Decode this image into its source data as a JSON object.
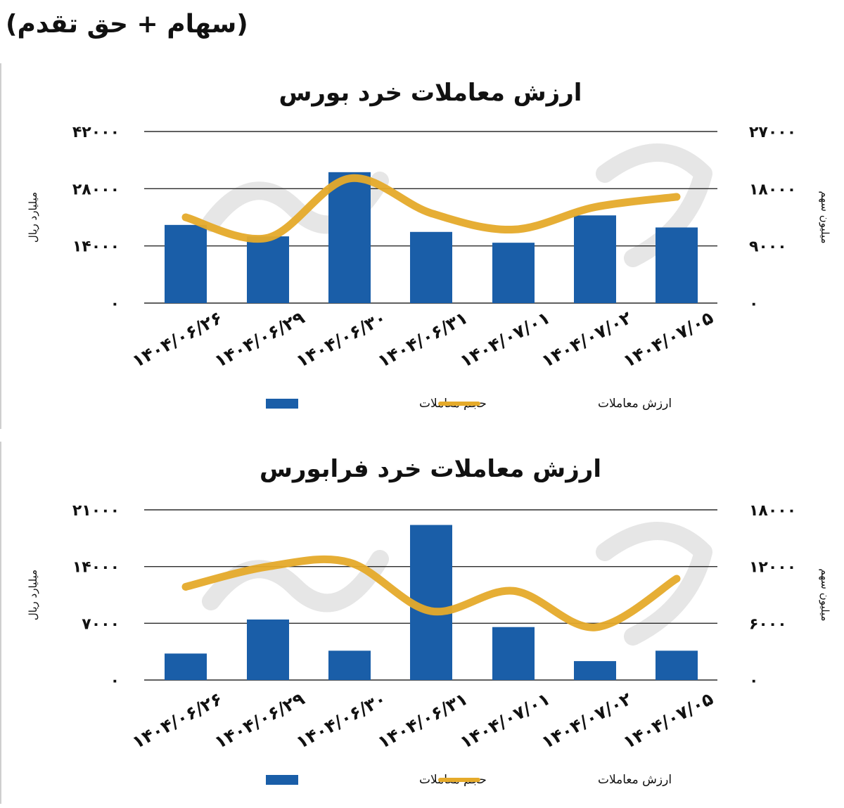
{
  "page_header": "(سهام + حق تقدم)",
  "colors": {
    "bar": "#1a5ea8",
    "line": "#e5aa2a",
    "grid": "#2b2b2b",
    "text": "#111111"
  },
  "chart_data": [
    {
      "type": "bar",
      "title": "ارزش معاملات خرد بورس",
      "categories": [
        "۱۴۰۴/۰۶/۲۶",
        "۱۴۰۴/۰۶/۲۹",
        "۱۴۰۴/۰۶/۳۰",
        "۱۴۰۴/۰۶/۳۱",
        "۱۴۰۴/۰۷/۰۱",
        "۱۴۰۴/۰۷/۰۲",
        "۱۴۰۴/۰۷/۰۵"
      ],
      "y_left_label": "میلیارد ریال",
      "y_right_label": "میلیون سهم",
      "y_left_ticks": [
        "۰",
        "۱۴۰۰۰",
        "۲۸۰۰۰",
        "۴۲۰۰۰"
      ],
      "y_right_ticks": [
        "۰",
        "۹۰۰۰",
        "۱۸۰۰۰",
        "۲۷۰۰۰"
      ],
      "ylim_left": [
        0,
        42000
      ],
      "ylim_right": [
        0,
        27000
      ],
      "grid": true,
      "legend_position": "bottom",
      "series": [
        {
          "name": "حجم معاملات",
          "type": "bar",
          "axis": "right",
          "values": [
            12300,
            10500,
            20600,
            11200,
            9500,
            13800,
            11900
          ]
        },
        {
          "name": "ارزش معاملات",
          "type": "line",
          "axis": "left",
          "values": [
            21000,
            16000,
            30500,
            22000,
            18000,
            23500,
            26000
          ]
        }
      ]
    },
    {
      "type": "bar",
      "title": "ارزش معاملات خرد فرابورس",
      "categories": [
        "۱۴۰۴/۰۶/۲۶",
        "۱۴۰۴/۰۶/۲۹",
        "۱۴۰۴/۰۶/۳۰",
        "۱۴۰۴/۰۶/۳۱",
        "۱۴۰۴/۰۷/۰۱",
        "۱۴۰۴/۰۷/۰۲",
        "۱۴۰۴/۰۷/۰۵"
      ],
      "y_left_label": "میلیارد ریال",
      "y_right_label": "میلیون سهم",
      "y_left_ticks": [
        "۰",
        "۷۰۰۰",
        "۱۴۰۰۰",
        "۲۱۰۰۰"
      ],
      "y_right_ticks": [
        "۰",
        "۶۰۰۰",
        "۱۲۰۰۰",
        "۱۸۰۰۰"
      ],
      "ylim_left": [
        0,
        21000
      ],
      "ylim_right": [
        0,
        18000
      ],
      "grid": true,
      "legend_position": "bottom",
      "series": [
        {
          "name": "حجم معاملات",
          "type": "bar",
          "axis": "right",
          "values": [
            2800,
            6400,
            3100,
            16400,
            5600,
            2000,
            3100
          ]
        },
        {
          "name": "ارزش معاملات",
          "type": "line",
          "axis": "left",
          "values": [
            11500,
            14000,
            14500,
            8500,
            11000,
            6500,
            12500
          ]
        }
      ]
    }
  ]
}
